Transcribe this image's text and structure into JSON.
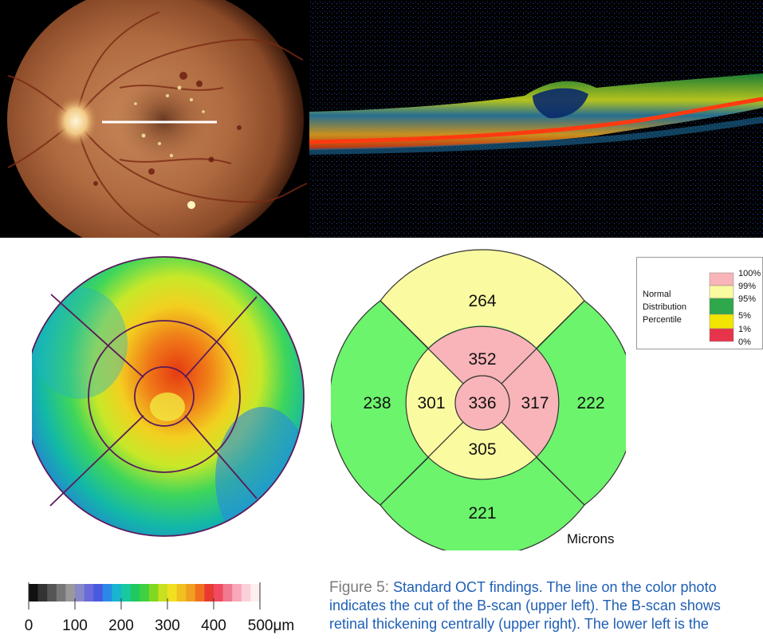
{
  "etdrs": {
    "superior_outer": "264",
    "temporal_outer": "238",
    "temporal_inner": "301",
    "central": "336",
    "nasal_inner": "317",
    "nasal_outer": "222",
    "superior_inner": "352",
    "inferior_inner": "305",
    "inferior_outer": "221",
    "units": "Microns",
    "colors": {
      "superior_outer": "#fafaa0",
      "temporal_outer": "#6cf46c",
      "nasal_outer": "#6cf46c",
      "inferior_outer": "#6cf46c",
      "superior_inner": "#f8b4b8",
      "nasal_inner": "#f8b4b8",
      "central": "#f8b4b8",
      "temporal_inner": "#fafaa0",
      "inferior_inner": "#fafaa0"
    }
  },
  "legend": {
    "title_lines": [
      "Normal",
      "Distribution",
      "Percentile"
    ],
    "ticks": [
      "100%",
      "99%",
      "95%",
      "5%",
      "1%",
      "0%"
    ],
    "swatches": [
      "#f8b4b8",
      "#fafaa0",
      "#2ea84a",
      "#f2e600",
      "#e8344a"
    ]
  },
  "colorbar": {
    "ticks": [
      "0",
      "100",
      "200",
      "300",
      "400",
      "500μm"
    ]
  },
  "caption": {
    "label": "Figure 5:",
    "text": " Standard OCT findings. The line on the color photo indicates the cut of the B-scan (upper left). The B-scan shows retinal thickening centrally (upper right). The lower left is the"
  }
}
